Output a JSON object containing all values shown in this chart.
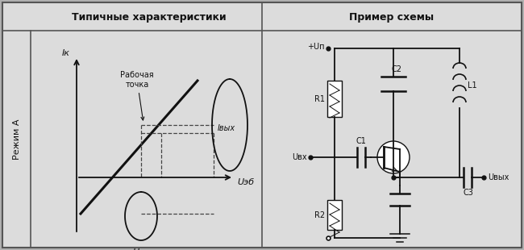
{
  "title_left": "Типичные характеристики",
  "title_right": "Пример схемы",
  "label_mode": "Режим А",
  "label_ik": "Iк",
  "label_ueb": "Uэб",
  "label_uvx": "Uвх",
  "label_ivyx": "Iвых",
  "label_rabochaya": "Рабочая\nточка",
  "label_upn": "+Uп",
  "label_uvyx_right": "Uвых",
  "label_uvx_circ": "Uвх",
  "bg_color": "#e0e0e0",
  "line_color": "#111111"
}
